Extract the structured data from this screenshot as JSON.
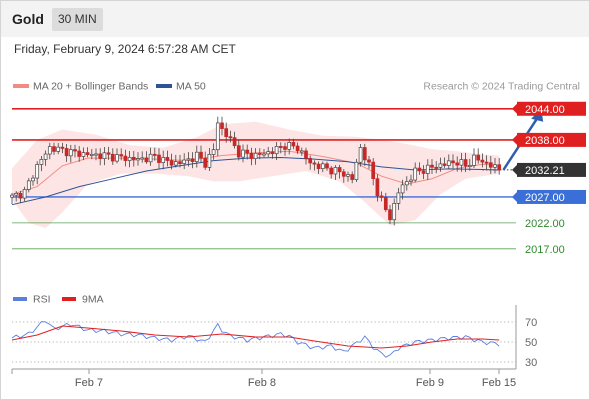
{
  "header": {
    "instrument": "Gold",
    "timeframe": "30 MIN"
  },
  "timestamp": "Friday, February 9, 2024 6:57:28 AM CET",
  "legend": {
    "items": [
      {
        "label": "MA 20 + Bollinger Bands",
        "color": "#f28b82"
      },
      {
        "label": "MA 50",
        "color": "#2f5496"
      }
    ],
    "credit": "Research © 2024 Trading Central"
  },
  "rsi_legend": {
    "items": [
      {
        "label": "RSI",
        "color": "#5b7fde"
      },
      {
        "label": "9MA",
        "color": "#e02020"
      }
    ]
  },
  "colors": {
    "resistance": "#e02020",
    "pivot": "#3a6fd8",
    "support": "#2e8b2e",
    "current": "#333333",
    "arrow": "#2f5eaa",
    "band_fill": "#fde0e0",
    "candle_up": "#ffffff",
    "candle_down": "#c62828"
  },
  "chart_data": [
    {
      "type": "candlestick",
      "title": "",
      "ylim": [
        2014.5,
        2046.5
      ],
      "levels": [
        {
          "name": "resistance-2",
          "label": "2044.00",
          "value": 2044.0,
          "kind": "resistance"
        },
        {
          "name": "resistance-1",
          "label": "2038.00",
          "value": 2038.0,
          "kind": "resistance"
        },
        {
          "name": "current-price",
          "label": "2032.21",
          "value": 2032.21,
          "kind": "current"
        },
        {
          "name": "pivot",
          "label": "2027.00",
          "value": 2027.0,
          "kind": "pivot"
        },
        {
          "name": "support-1",
          "label": "2022.00",
          "value": 2022.0,
          "kind": "support"
        },
        {
          "name": "support-2",
          "label": "2017.00",
          "value": 2017.0,
          "kind": "support"
        }
      ],
      "x_ticks": [
        "Feb 7",
        "Feb 8",
        "Feb 9",
        "Feb 15"
      ],
      "close_path": [
        [
          0,
          2027.0
        ],
        [
          3,
          2028.0
        ],
        [
          6,
          2033.0
        ],
        [
          9,
          2036.5
        ],
        [
          12,
          2036.0
        ],
        [
          15,
          2035.5
        ],
        [
          18,
          2035.2
        ],
        [
          22,
          2035.0
        ],
        [
          26,
          2034.6
        ],
        [
          30,
          2034.2
        ],
        [
          34,
          2034.8
        ],
        [
          38,
          2033.5
        ],
        [
          41,
          2033.8
        ],
        [
          44,
          2035.0
        ],
        [
          46,
          2033.5
        ],
        [
          48,
          2036.0
        ],
        [
          49,
          2041.5
        ],
        [
          50,
          2040.0
        ],
        [
          52,
          2038.0
        ],
        [
          54,
          2035.5
        ],
        [
          58,
          2035.0
        ],
        [
          62,
          2035.8
        ],
        [
          65,
          2037.0
        ],
        [
          68,
          2036.5
        ],
        [
          71,
          2033.5
        ],
        [
          75,
          2032.5
        ],
        [
          79,
          2031.5
        ],
        [
          81,
          2030.5
        ],
        [
          83,
          2036.5
        ],
        [
          85,
          2033.0
        ],
        [
          87,
          2028.0
        ],
        [
          89,
          2024.5
        ],
        [
          90,
          2023.0
        ],
        [
          92,
          2028.0
        ],
        [
          94,
          2030.0
        ],
        [
          96,
          2031.8
        ],
        [
          99,
          2032.5
        ],
        [
          102,
          2033.2
        ],
        [
          106,
          2033.8
        ],
        [
          108,
          2033.0
        ],
        [
          110,
          2034.5
        ],
        [
          113,
          2033.5
        ],
        [
          116,
          2032.21
        ]
      ],
      "ma20": [
        [
          0,
          2027.5
        ],
        [
          6,
          2029.0
        ],
        [
          12,
          2033.0
        ],
        [
          18,
          2034.5
        ],
        [
          26,
          2034.5
        ],
        [
          34,
          2034.3
        ],
        [
          42,
          2034.0
        ],
        [
          50,
          2035.0
        ],
        [
          58,
          2035.5
        ],
        [
          66,
          2035.8
        ],
        [
          74,
          2034.8
        ],
        [
          82,
          2033.5
        ],
        [
          88,
          2031.0
        ],
        [
          94,
          2029.5
        ],
        [
          100,
          2030.5
        ],
        [
          106,
          2032.5
        ],
        [
          112,
          2033.3
        ],
        [
          116,
          2033.0
        ]
      ],
      "bb_upper": [
        [
          0,
          2032.5
        ],
        [
          6,
          2038.0
        ],
        [
          12,
          2040.0
        ],
        [
          20,
          2039.0
        ],
        [
          28,
          2037.0
        ],
        [
          36,
          2036.5
        ],
        [
          44,
          2038.5
        ],
        [
          50,
          2041.0
        ],
        [
          58,
          2041.5
        ],
        [
          66,
          2040.0
        ],
        [
          74,
          2038.8
        ],
        [
          82,
          2038.6
        ],
        [
          88,
          2038.0
        ],
        [
          94,
          2037.2
        ],
        [
          100,
          2036.2
        ],
        [
          106,
          2035.8
        ],
        [
          112,
          2035.2
        ],
        [
          116,
          2035.0
        ]
      ],
      "bb_lower": [
        [
          0,
          2026.5
        ],
        [
          4,
          2022.0
        ],
        [
          8,
          2021.0
        ],
        [
          12,
          2024.0
        ],
        [
          18,
          2029.5
        ],
        [
          26,
          2031.5
        ],
        [
          34,
          2031.5
        ],
        [
          42,
          2031.0
        ],
        [
          48,
          2030.0
        ],
        [
          54,
          2030.0
        ],
        [
          62,
          2031.0
        ],
        [
          70,
          2032.0
        ],
        [
          78,
          2030.0
        ],
        [
          84,
          2026.0
        ],
        [
          90,
          2021.5
        ],
        [
          96,
          2022.5
        ],
        [
          102,
          2027.5
        ],
        [
          108,
          2030.5
        ],
        [
          116,
          2031.5
        ]
      ],
      "ma50": [
        [
          0,
          2025.5
        ],
        [
          8,
          2027.0
        ],
        [
          16,
          2029.0
        ],
        [
          24,
          2030.5
        ],
        [
          32,
          2032.0
        ],
        [
          40,
          2033.0
        ],
        [
          48,
          2034.0
        ],
        [
          56,
          2034.5
        ],
        [
          64,
          2034.6
        ],
        [
          72,
          2034.3
        ],
        [
          80,
          2033.8
        ],
        [
          88,
          2032.8
        ],
        [
          96,
          2032.2
        ],
        [
          104,
          2032.4
        ],
        [
          112,
          2032.3
        ],
        [
          116,
          2032.2
        ]
      ],
      "projection": {
        "from": [
          117,
          2032.21
        ],
        "to": [
          126,
          2044.0
        ]
      }
    },
    {
      "type": "line",
      "title": "RSI",
      "ylim": [
        24,
        80
      ],
      "y_ticks": [
        70,
        50,
        30
      ],
      "series": [
        {
          "name": "RSI",
          "points": [
            [
              0,
              54
            ],
            [
              4,
              58
            ],
            [
              8,
              72
            ],
            [
              10,
              63
            ],
            [
              14,
              68
            ],
            [
              18,
              62
            ],
            [
              22,
              61
            ],
            [
              26,
              58
            ],
            [
              30,
              57
            ],
            [
              34,
              54
            ],
            [
              38,
              52
            ],
            [
              42,
              56
            ],
            [
              46,
              50
            ],
            [
              49,
              67
            ],
            [
              50,
              62
            ],
            [
              52,
              56
            ],
            [
              56,
              52
            ],
            [
              60,
              55
            ],
            [
              64,
              58
            ],
            [
              66,
              56
            ],
            [
              68,
              50
            ],
            [
              72,
              44
            ],
            [
              76,
              46
            ],
            [
              79,
              40
            ],
            [
              81,
              46
            ],
            [
              84,
              55
            ],
            [
              86,
              45
            ],
            [
              88,
              38
            ],
            [
              90,
              36
            ],
            [
              92,
              44
            ],
            [
              96,
              50
            ],
            [
              100,
              52
            ],
            [
              104,
              54
            ],
            [
              108,
              55
            ],
            [
              112,
              50
            ],
            [
              116,
              48
            ]
          ]
        },
        {
          "name": "9MA",
          "points": [
            [
              0,
              52
            ],
            [
              6,
              57
            ],
            [
              12,
              66
            ],
            [
              18,
              64
            ],
            [
              26,
              61
            ],
            [
              34,
              57
            ],
            [
              42,
              55
            ],
            [
              50,
              58
            ],
            [
              58,
              55
            ],
            [
              66,
              55
            ],
            [
              72,
              51
            ],
            [
              80,
              46
            ],
            [
              88,
              44
            ],
            [
              94,
              46
            ],
            [
              100,
              50
            ],
            [
              106,
              53
            ],
            [
              112,
              53
            ],
            [
              116,
              52
            ]
          ]
        }
      ]
    }
  ]
}
